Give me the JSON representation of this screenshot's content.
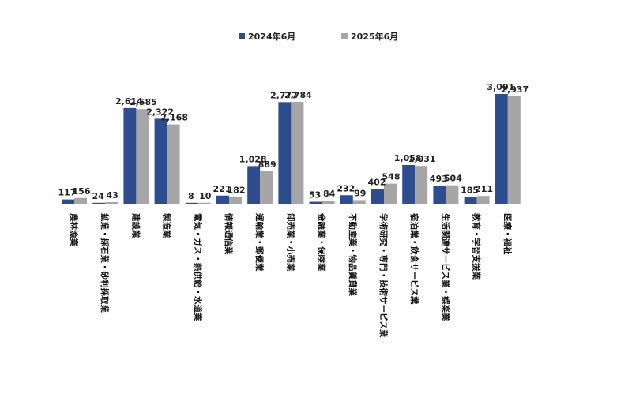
{
  "chart_data": {
    "type": "bar",
    "categories": [
      "農林漁業",
      "鉱業・採石業・砂利採取業",
      "建設業",
      "製造業",
      "電気・ガス・熱供給・水道業",
      "情報通信業",
      "運輸業・郵便業",
      "卸売業・小売業",
      "金融業・保険業",
      "不動産業・物品賃貸業",
      "学術研究・専門・技術サービス業",
      "宿泊業・飲食サービス業",
      "生活関連サービス業・娯楽業",
      "教育・学習支援業",
      "医療・福祉"
    ],
    "series": [
      {
        "name": "2024年6月",
        "color": "#2e4d8f",
        "values": [
          117,
          24,
          2614,
          2322,
          8,
          221,
          1028,
          2777,
          53,
          232,
          402,
          1058,
          493,
          185,
          3001
        ],
        "labels": [
          "117",
          "24",
          "2,614",
          "2,322",
          "8",
          "221",
          "1,028",
          "2,777",
          "53",
          "232",
          "402",
          "1,058",
          "493",
          "185",
          "3,001"
        ]
      },
      {
        "name": "2025年6月",
        "color": "#a6a6a6",
        "values": [
          156,
          43,
          2585,
          2168,
          10,
          182,
          889,
          2784,
          84,
          99,
          548,
          1031,
          504,
          211,
          2937
        ],
        "labels": [
          "156",
          "43",
          "2,585",
          "2,168",
          "10",
          "182",
          "889",
          "2,784",
          "84",
          "99",
          "548",
          "1,031",
          "504",
          "211",
          "2,937"
        ]
      }
    ],
    "ylim": [
      0,
      3000
    ],
    "grid": false,
    "legend_position": "top-center",
    "title": "",
    "xlabel": "",
    "ylabel": ""
  }
}
